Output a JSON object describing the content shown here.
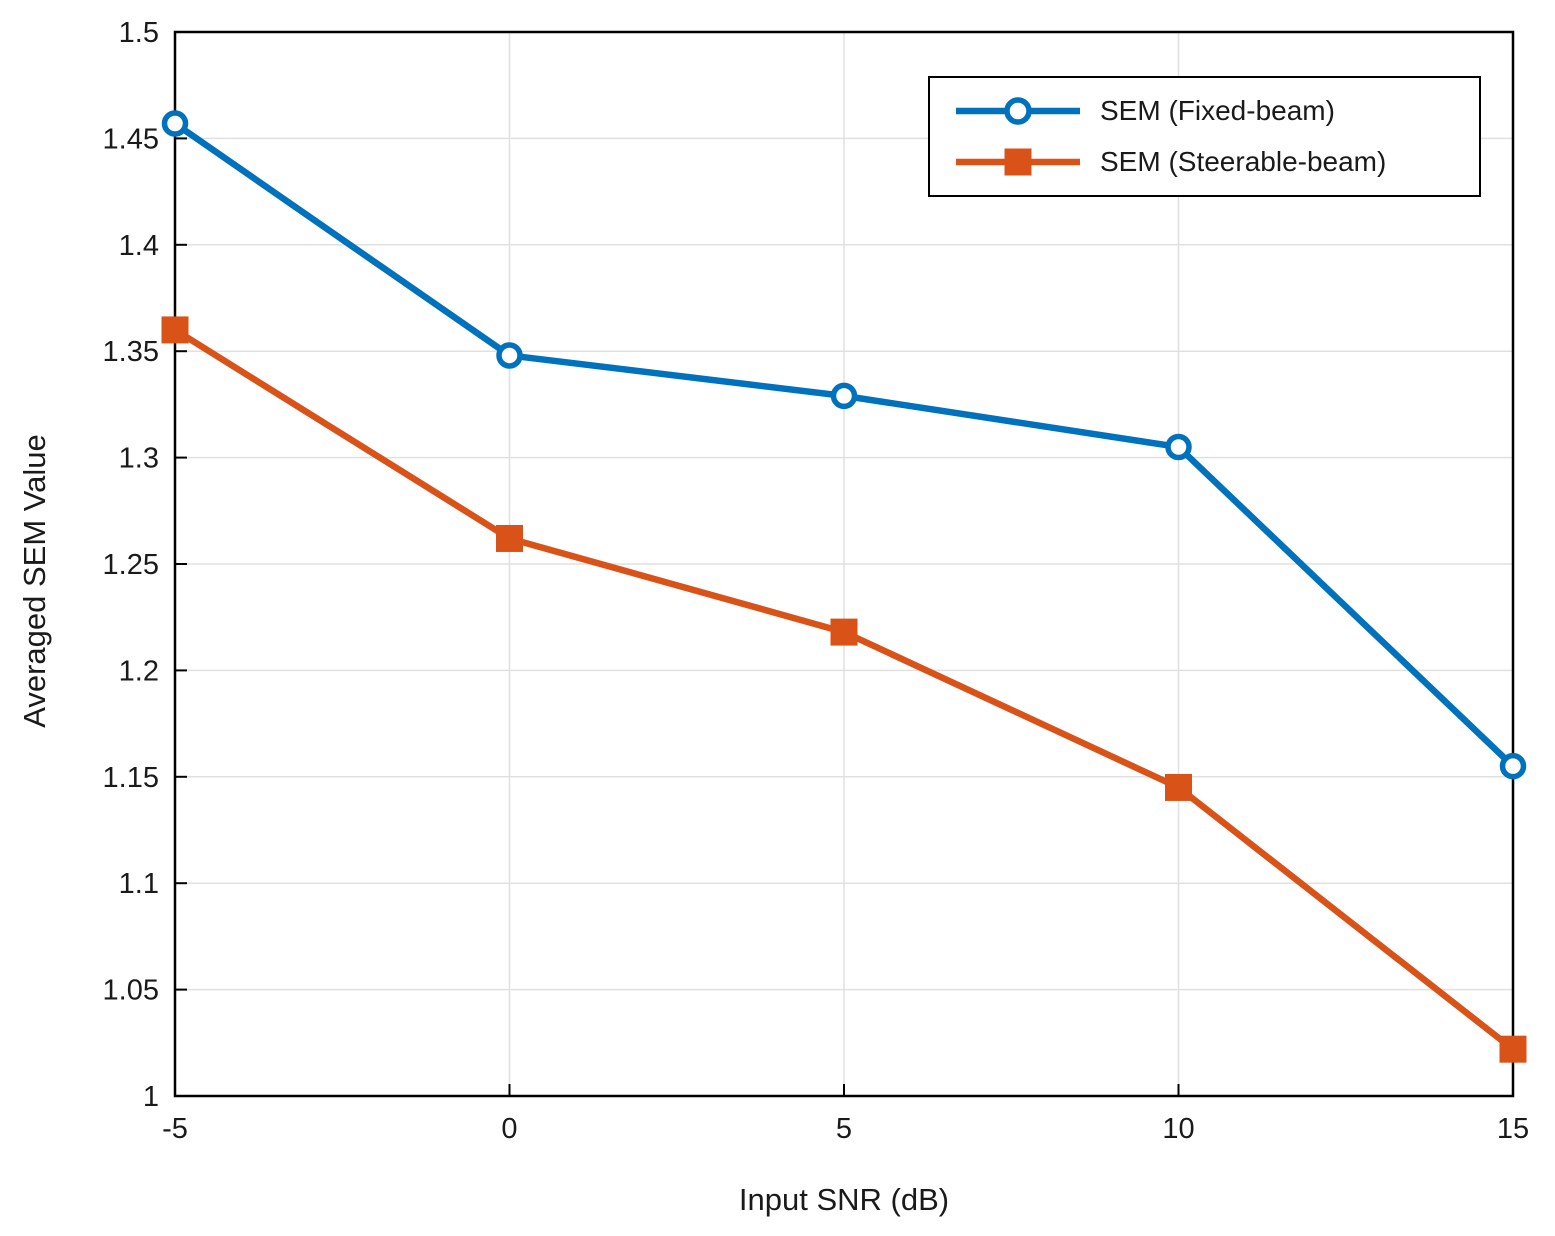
{
  "figure": {
    "background": "#ffffff",
    "axes_color": "#000000",
    "grid_color": "#e0e0e0",
    "text_color": "#1a1a1a"
  },
  "chart_data": {
    "type": "line",
    "xlabel": "Input SNR (dB)",
    "ylabel": "Averaged SEM Value",
    "x": [
      -5,
      0,
      5,
      10,
      15
    ],
    "xlim": [
      -5,
      15
    ],
    "ylim": [
      1,
      1.5
    ],
    "xticks": [
      -5,
      0,
      5,
      10,
      15
    ],
    "yticks": [
      1,
      1.05,
      1.1,
      1.15,
      1.2,
      1.25,
      1.3,
      1.35,
      1.4,
      1.45,
      1.5
    ],
    "grid": true,
    "legend_position": "top-right",
    "series": [
      {
        "name": "SEM (Fixed-beam)",
        "color": "#0072BD",
        "marker": "circle",
        "values": [
          1.457,
          1.348,
          1.329,
          1.305,
          1.155
        ]
      },
      {
        "name": "SEM (Steerable-beam)",
        "color": "#D95319",
        "marker": "square",
        "values": [
          1.36,
          1.262,
          1.218,
          1.145,
          1.022
        ]
      }
    ]
  }
}
